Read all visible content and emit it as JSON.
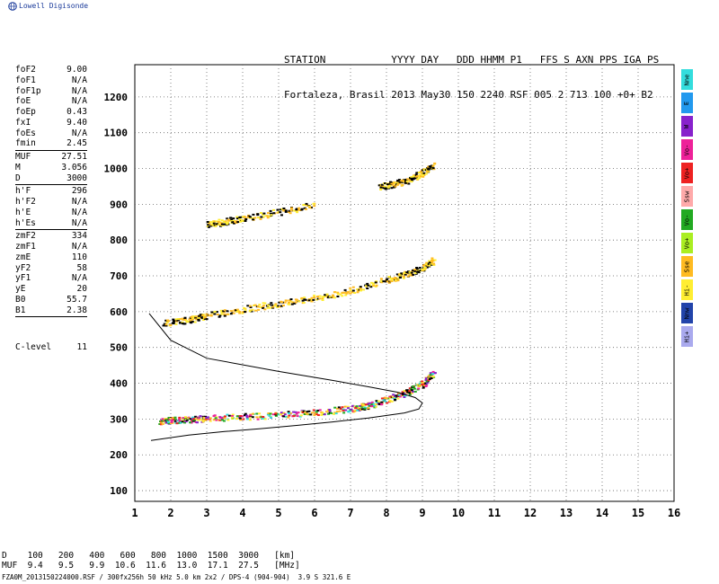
{
  "logo": {
    "text": "Lowell Digisonde",
    "icon": "globe-icon"
  },
  "header": {
    "line1": "STATION           YYYY DAY   DDD HHMM P1   FFS S AXN PPS IGA PS",
    "line2": "Fortaleza, Brasil 2013 May30 150 2240 RSF 005 2 713 100 +0+ B2"
  },
  "params_groups": [
    [
      {
        "label": "foF2",
        "value": "9.00"
      },
      {
        "label": "foF1",
        "value": "N/A"
      },
      {
        "label": "foF1p",
        "value": "N/A"
      },
      {
        "label": "foE",
        "value": "N/A"
      },
      {
        "label": "foEp",
        "value": "0.43"
      },
      {
        "label": "fxI",
        "value": "9.40"
      },
      {
        "label": "foEs",
        "value": "N/A"
      },
      {
        "label": "fmin",
        "value": "2.45"
      }
    ],
    [
      {
        "label": "MUF",
        "value": "27.51"
      },
      {
        "label": "M",
        "value": "3.056"
      },
      {
        "label": "D",
        "value": "3000"
      }
    ],
    [
      {
        "label": "h'F",
        "value": "296"
      },
      {
        "label": "h'F2",
        "value": "N/A"
      },
      {
        "label": "h'E",
        "value": "N/A"
      },
      {
        "label": "h'Es",
        "value": "N/A"
      }
    ],
    [
      {
        "label": "zmF2",
        "value": "334"
      },
      {
        "label": "zmF1",
        "value": "N/A"
      },
      {
        "label": "zmE",
        "value": "110"
      },
      {
        "label": "yF2",
        "value": "58"
      },
      {
        "label": "yF1",
        "value": "N/A"
      },
      {
        "label": "yE",
        "value": "20"
      },
      {
        "label": "B0",
        "value": "55.7"
      },
      {
        "label": "B1",
        "value": "2.38"
      }
    ]
  ],
  "clevel": {
    "label": "C-level",
    "value": "11"
  },
  "legend": [
    {
      "label": "Nne",
      "color": "#33dddd"
    },
    {
      "label": "E",
      "color": "#2299ee"
    },
    {
      "label": "W",
      "color": "#8822cc"
    },
    {
      "label": "Vo-",
      "color": "#ee2299"
    },
    {
      "label": "Vo+",
      "color": "#ee2222"
    },
    {
      "label": "Ssw",
      "color": "#ffaaaa"
    },
    {
      "label": "Vo-",
      "color": "#22aa22"
    },
    {
      "label": "Vo+",
      "color": "#aaee22"
    },
    {
      "label": "Sse",
      "color": "#ffbb22"
    },
    {
      "label": "Hi-",
      "color": "#ffee33"
    },
    {
      "label": "Nnw",
      "color": "#2244aa"
    },
    {
      "label": "Hi+",
      "color": "#aaaaee"
    }
  ],
  "bottom": {
    "d_line": "D    100   200   400   600   800  1000  1500  3000   [km]",
    "muf_line": "MUF  9.4   9.5   9.9  10.6  11.6  13.0  17.1  27.5   [MHz]"
  },
  "footer": "FZA0M_2013150224000.RSF / 300fx256h 50 kHz 5.0 km 2x2 / DPS-4 (904-904)  3.9 S 321.6 E",
  "chart_data": {
    "type": "scatter",
    "x_ticks": [
      "1",
      "2",
      "3",
      "4",
      "5",
      "6",
      "7",
      "8",
      "9",
      "10",
      "11",
      "12",
      "13",
      "14",
      "15",
      "16"
    ],
    "y_ticks": [
      "100",
      "200",
      "300",
      "400",
      "500",
      "600",
      "700",
      "800",
      "900",
      "1000",
      "1100",
      "1200"
    ],
    "xlim": [
      1,
      16
    ],
    "ylim": [
      70,
      1290
    ],
    "grid": "dotted",
    "traces": [
      {
        "name": "F-layer 1st hop",
        "x": [
          1.7,
          2.0,
          2.5,
          3.0,
          4.0,
          5.0,
          6.0,
          7.0,
          7.5,
          8.0,
          8.5,
          9.0,
          9.3
        ],
        "y": [
          295,
          298,
          300,
          303,
          308,
          313,
          320,
          330,
          340,
          355,
          375,
          400,
          430
        ]
      },
      {
        "name": "F-layer 2nd hop",
        "x": [
          1.8,
          2.5,
          3.0,
          4.0,
          5.0,
          6.0,
          7.0,
          8.0,
          8.5,
          9.0,
          9.3
        ],
        "y": [
          570,
          578,
          590,
          608,
          625,
          640,
          660,
          690,
          705,
          725,
          745
        ]
      },
      {
        "name": "F-layer 3rd hop",
        "x": [
          3.0,
          3.5,
          4.0,
          5.0,
          6.0
        ],
        "y": [
          845,
          853,
          862,
          880,
          900
        ]
      },
      {
        "name": "F-layer 4th hop",
        "x": [
          7.8,
          8.2,
          8.6,
          9.0,
          9.3
        ],
        "y": [
          950,
          958,
          970,
          990,
          1010
        ]
      }
    ],
    "profile": {
      "x": [
        1.45,
        2.5,
        3.5,
        4.5,
        5.5,
        6.5,
        7.5,
        8.5,
        8.9,
        9.0,
        8.8,
        8.3,
        7.5,
        6.5,
        5.0,
        3.0,
        2.0,
        1.4
      ],
      "y": [
        240,
        255,
        265,
        273,
        282,
        292,
        303,
        317,
        328,
        345,
        360,
        375,
        390,
        408,
        433,
        470,
        520,
        595
      ]
    }
  }
}
